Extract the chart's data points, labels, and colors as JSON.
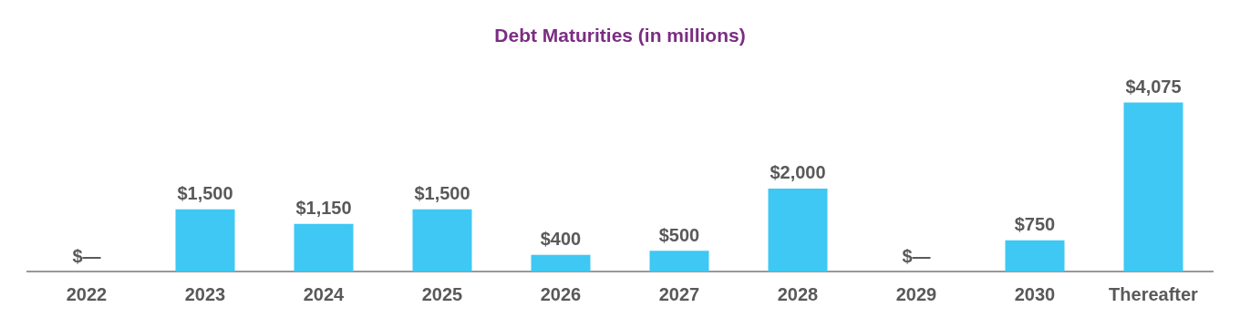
{
  "chart_data": {
    "type": "bar",
    "title": "Debt Maturities (in millions)",
    "categories": [
      "2022",
      "2023",
      "2024",
      "2025",
      "2026",
      "2027",
      "2028",
      "2029",
      "2030",
      "Thereafter"
    ],
    "values": [
      0,
      1500,
      1150,
      1500,
      400,
      500,
      2000,
      0,
      750,
      4075
    ],
    "value_labels": [
      "$—",
      "$1,500",
      "$1,150",
      "$1,500",
      "$400",
      "$500",
      "$2,000",
      "$—",
      "$750",
      "$4,075"
    ],
    "color": "#3ec8f3",
    "grid": false,
    "legend": false
  }
}
